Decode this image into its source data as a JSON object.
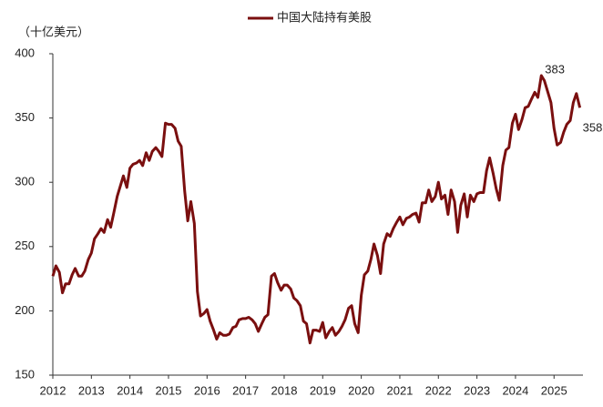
{
  "chart_data": {
    "type": "line",
    "y_axis_label": "（十亿美元）",
    "x": [
      2012.0,
      2012.08,
      2012.17,
      2012.25,
      2012.33,
      2012.42,
      2012.5,
      2012.58,
      2012.67,
      2012.75,
      2012.83,
      2012.92,
      2013.0,
      2013.08,
      2013.17,
      2013.25,
      2013.33,
      2013.42,
      2013.5,
      2013.58,
      2013.67,
      2013.75,
      2013.83,
      2013.92,
      2014.0,
      2014.08,
      2014.17,
      2014.25,
      2014.33,
      2014.42,
      2014.5,
      2014.58,
      2014.67,
      2014.75,
      2014.83,
      2014.92,
      2015.0,
      2015.08,
      2015.17,
      2015.25,
      2015.33,
      2015.42,
      2015.5,
      2015.58,
      2015.67,
      2015.75,
      2015.83,
      2015.92,
      2016.0,
      2016.08,
      2016.17,
      2016.25,
      2016.33,
      2016.42,
      2016.5,
      2016.58,
      2016.67,
      2016.75,
      2016.83,
      2016.92,
      2017.0,
      2017.08,
      2017.17,
      2017.25,
      2017.33,
      2017.42,
      2017.5,
      2017.58,
      2017.67,
      2017.75,
      2017.83,
      2017.92,
      2018.0,
      2018.08,
      2018.17,
      2018.25,
      2018.33,
      2018.42,
      2018.5,
      2018.58,
      2018.67,
      2018.75,
      2018.83,
      2018.92,
      2019.0,
      2019.08,
      2019.17,
      2019.25,
      2019.33,
      2019.42,
      2019.5,
      2019.58,
      2019.67,
      2019.75,
      2019.83,
      2019.92,
      2020.0,
      2020.08,
      2020.17,
      2020.25,
      2020.33,
      2020.42,
      2020.5,
      2020.58,
      2020.67,
      2020.75,
      2020.83,
      2020.92,
      2021.0,
      2021.08,
      2021.17,
      2021.25,
      2021.33,
      2021.42,
      2021.5,
      2021.58,
      2021.67,
      2021.75,
      2021.83,
      2021.92,
      2022.0,
      2022.08,
      2022.17,
      2022.25,
      2022.33,
      2022.42,
      2022.5,
      2022.58,
      2022.67,
      2022.75,
      2022.83,
      2022.92,
      2023.0,
      2023.08,
      2023.17,
      2023.25,
      2023.33,
      2023.42,
      2023.5,
      2023.58,
      2023.67,
      2023.75,
      2023.83,
      2023.92,
      2024.0,
      2024.08,
      2024.17,
      2024.25,
      2024.33,
      2024.42,
      2024.5,
      2024.58,
      2024.67,
      2024.75,
      2024.83,
      2024.92,
      2025.0,
      2025.08,
      2025.17,
      2025.25,
      2025.33,
      2025.42,
      2025.5,
      2025.58,
      2025.67
    ],
    "series": [
      {
        "name": "中国大陆持有美股",
        "color": "#7a0f0f",
        "values": [
          227,
          235,
          230,
          214,
          221,
          221,
          228,
          233,
          227,
          227,
          231,
          240,
          245,
          256,
          260,
          264,
          261,
          271,
          265,
          276,
          289,
          297,
          305,
          296,
          311,
          314,
          315,
          317,
          313,
          323,
          317,
          324,
          327,
          324,
          320,
          346,
          345,
          345,
          342,
          332,
          328,
          293,
          270,
          285,
          268,
          215,
          196,
          198,
          201,
          192,
          185,
          178,
          183,
          181,
          181,
          182,
          187,
          188,
          193,
          194,
          194,
          195,
          193,
          190,
          184,
          190,
          195,
          197,
          227,
          229,
          222,
          216,
          220,
          220,
          217,
          210,
          208,
          204,
          192,
          190,
          175,
          185,
          185,
          184,
          191,
          179,
          184,
          187,
          181,
          184,
          188,
          193,
          202,
          204,
          190,
          183,
          212,
          228,
          231,
          240,
          252,
          243,
          229,
          252,
          260,
          258,
          264,
          269,
          273,
          267,
          272,
          273,
          275,
          276,
          269,
          284,
          284,
          294,
          285,
          289,
          300,
          287,
          290,
          275,
          294,
          285,
          261,
          282,
          291,
          273,
          290,
          285,
          291,
          292,
          292,
          309,
          319,
          307,
          295,
          286,
          313,
          325,
          327,
          346,
          353,
          341,
          349,
          358,
          359,
          365,
          370,
          366,
          383,
          379,
          371,
          362,
          342,
          329,
          331,
          339,
          345,
          348,
          362,
          369,
          358
        ]
      }
    ],
    "annotations": [
      383,
      358
    ],
    "xlim": [
      2012,
      2025.75
    ],
    "xticks": [
      2012,
      2013,
      2014,
      2015,
      2016,
      2017,
      2018,
      2019,
      2020,
      2021,
      2022,
      2023,
      2024,
      2025
    ],
    "ylim": [
      150,
      400
    ],
    "yticks": [
      150,
      200,
      250,
      300,
      350,
      400
    ],
    "grid": false,
    "legend": "top"
  }
}
